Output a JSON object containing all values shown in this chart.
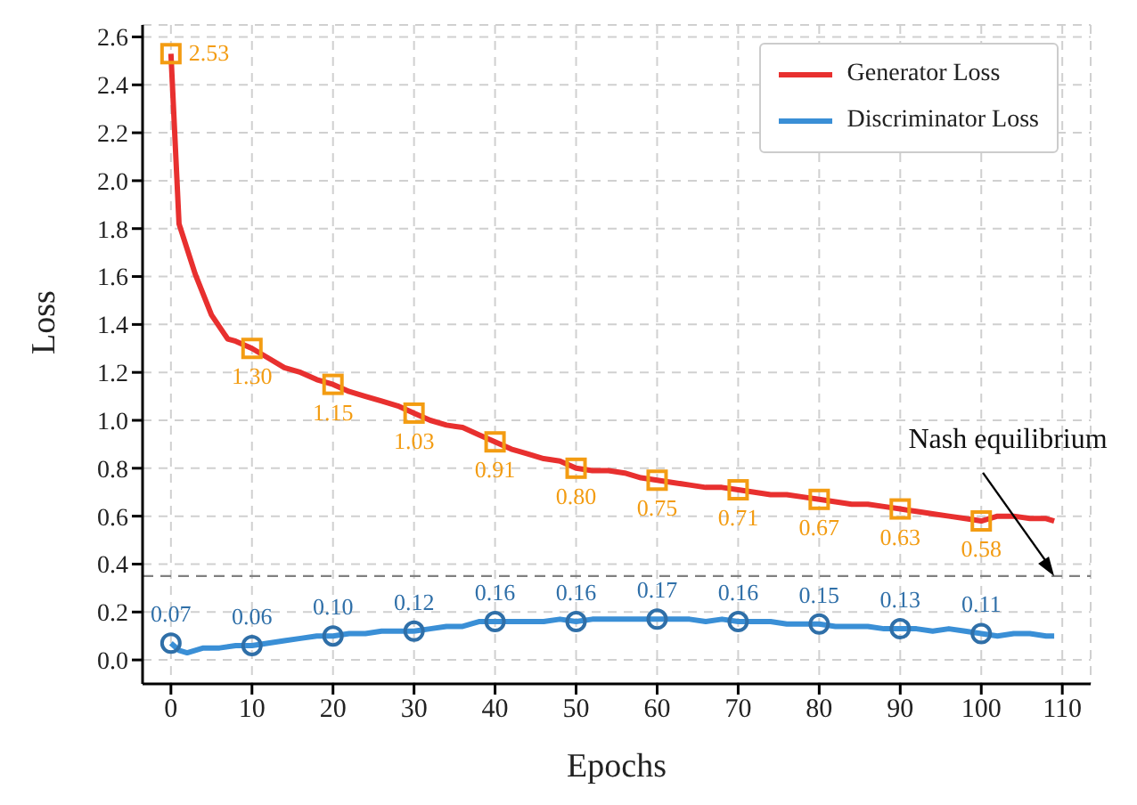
{
  "chart_data": {
    "type": "line",
    "xlabel": "Epochs",
    "ylabel": "Loss",
    "xlim": [
      -3.5,
      113.5
    ],
    "xticks": [
      0,
      10,
      20,
      30,
      40,
      50,
      60,
      70,
      80,
      90,
      100,
      110
    ],
    "ylim": [
      -0.1,
      2.65
    ],
    "yticks": [
      {
        "value": 0,
        "label": "0.0"
      },
      0.2,
      0.4,
      0.6,
      0.8,
      {
        "value": 1,
        "label": "1.0"
      },
      1.2,
      1.4,
      1.6,
      1.8,
      {
        "value": 2,
        "label": "2.0"
      },
      2.2,
      2.4,
      2.6
    ],
    "grid": true,
    "legend": "top right",
    "line_style": "solid",
    "series": [
      {
        "name": "Generator Loss",
        "color": "#e8302f",
        "marker": "none",
        "x": [
          0,
          1,
          3,
          5,
          7,
          8,
          10,
          12,
          14,
          16,
          18,
          20,
          22,
          24,
          26,
          28,
          30,
          32,
          34,
          36,
          38,
          40,
          42,
          44,
          46,
          48,
          50,
          52,
          54,
          56,
          58,
          60,
          62,
          64,
          66,
          68,
          70,
          72,
          74,
          76,
          78,
          80,
          82,
          84,
          86,
          88,
          90,
          92,
          94,
          96,
          98,
          100,
          102,
          104,
          106,
          108,
          109
        ],
        "values": [
          2.53,
          1.82,
          1.61,
          1.44,
          1.34,
          1.33,
          1.3,
          1.26,
          1.22,
          1.2,
          1.17,
          1.15,
          1.12,
          1.1,
          1.08,
          1.06,
          1.03,
          1.0,
          0.98,
          0.97,
          0.94,
          0.91,
          0.88,
          0.86,
          0.84,
          0.83,
          0.8,
          0.79,
          0.79,
          0.78,
          0.76,
          0.75,
          0.74,
          0.73,
          0.72,
          0.72,
          0.71,
          0.7,
          0.69,
          0.69,
          0.68,
          0.67,
          0.66,
          0.65,
          0.65,
          0.64,
          0.63,
          0.62,
          0.61,
          0.6,
          0.59,
          0.58,
          0.6,
          0.6,
          0.59,
          0.59,
          0.58
        ]
      },
      {
        "color": "#f39c12",
        "type": "scatter",
        "marker": "square",
        "x": [
          0,
          10,
          20,
          30,
          40,
          50,
          60,
          70,
          80,
          90,
          100
        ],
        "values": [
          2.53,
          1.3,
          1.15,
          1.03,
          0.91,
          0.8,
          0.75,
          0.71,
          0.67,
          0.63,
          0.58
        ],
        "value_labels": [
          "2.53",
          "1.30",
          "1.15",
          "1.03",
          "0.91",
          "0.80",
          "0.75",
          "0.71",
          "0.67",
          "0.63",
          "0.58"
        ]
      },
      {
        "name": "Discriminator Loss",
        "color": "#3a8fd6",
        "marker": "none",
        "x": [
          0,
          1,
          2,
          4,
          6,
          8,
          10,
          12,
          14,
          16,
          18,
          20,
          22,
          24,
          26,
          28,
          30,
          32,
          34,
          36,
          38,
          40,
          42,
          44,
          46,
          48,
          50,
          52,
          54,
          56,
          58,
          60,
          62,
          64,
          66,
          68,
          70,
          72,
          74,
          76,
          78,
          80,
          82,
          84,
          86,
          88,
          90,
          92,
          94,
          96,
          98,
          100,
          102,
          104,
          106,
          108,
          109
        ],
        "values": [
          0.07,
          0.04,
          0.03,
          0.05,
          0.05,
          0.06,
          0.06,
          0.07,
          0.08,
          0.09,
          0.1,
          0.1,
          0.11,
          0.11,
          0.12,
          0.12,
          0.12,
          0.13,
          0.14,
          0.14,
          0.16,
          0.16,
          0.16,
          0.16,
          0.16,
          0.17,
          0.16,
          0.17,
          0.17,
          0.17,
          0.17,
          0.17,
          0.17,
          0.17,
          0.16,
          0.17,
          0.16,
          0.16,
          0.16,
          0.15,
          0.15,
          0.15,
          0.14,
          0.14,
          0.14,
          0.13,
          0.13,
          0.13,
          0.12,
          0.13,
          0.12,
          0.11,
          0.1,
          0.11,
          0.11,
          0.1,
          0.1
        ]
      },
      {
        "color": "#2f6fa8",
        "type": "scatter",
        "marker": "circle",
        "x": [
          0,
          10,
          20,
          30,
          40,
          50,
          60,
          70,
          80,
          90,
          100
        ],
        "values": [
          0.07,
          0.06,
          0.1,
          0.12,
          0.16,
          0.16,
          0.17,
          0.16,
          0.15,
          0.13,
          0.11
        ],
        "value_labels": [
          "0.07",
          "0.06",
          "0.10",
          "0.12",
          "0.16",
          "0.16",
          "0.17",
          "0.16",
          "0.15",
          "0.13",
          "0.11"
        ]
      }
    ],
    "ref_lines": [
      {
        "axis": "y",
        "value": 0.35,
        "color": "#808080",
        "line_style": "dashed"
      }
    ],
    "annotations": [
      {
        "text": "Nash equilibrium",
        "x": 109,
        "y": 0.35
      }
    ]
  }
}
